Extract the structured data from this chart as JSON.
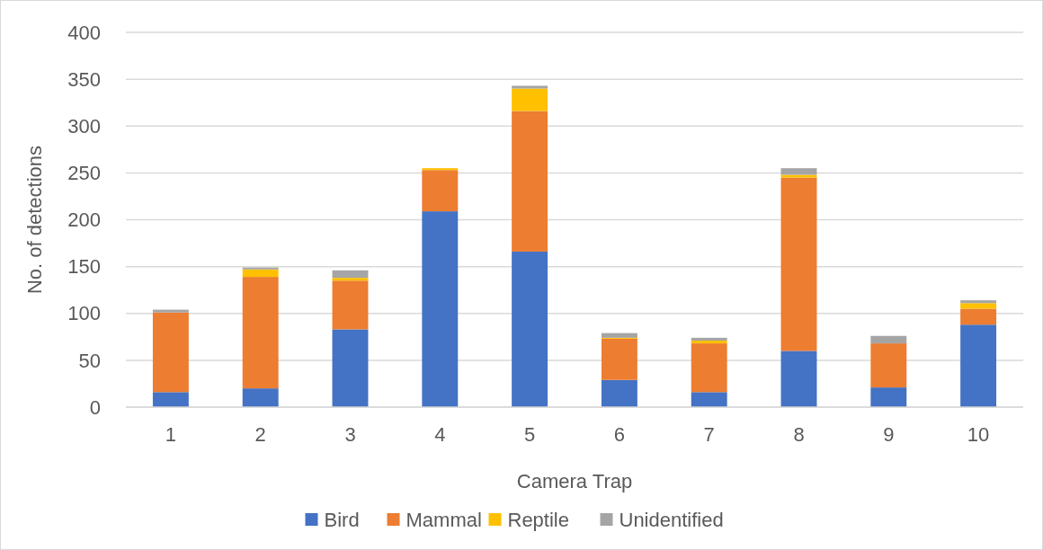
{
  "chart_data": {
    "type": "bar",
    "stacked": true,
    "xlabel": "Camera Trap",
    "ylabel": "No. of detections",
    "categories": [
      "1",
      "2",
      "3",
      "4",
      "5",
      "6",
      "7",
      "8",
      "9",
      "10"
    ],
    "series": [
      {
        "name": "Bird",
        "color": "#4472c4",
        "values": [
          16,
          20,
          83,
          209,
          166,
          29,
          16,
          60,
          21,
          88
        ]
      },
      {
        "name": "Mammal",
        "color": "#ed7d31",
        "values": [
          85,
          119,
          52,
          44,
          150,
          44,
          52,
          185,
          47,
          17
        ]
      },
      {
        "name": "Reptile",
        "color": "#ffc000",
        "values": [
          0,
          8,
          3,
          2,
          24,
          1,
          3,
          3,
          0,
          6
        ]
      },
      {
        "name": "Unidentified",
        "color": "#a5a5a5",
        "values": [
          3,
          2,
          8,
          0,
          3,
          5,
          3,
          7,
          8,
          3
        ]
      }
    ],
    "ylim": [
      0,
      400
    ],
    "yticks": [
      0,
      50,
      100,
      150,
      200,
      250,
      300,
      350,
      400
    ],
    "grid": "y",
    "legend": "bottom"
  }
}
